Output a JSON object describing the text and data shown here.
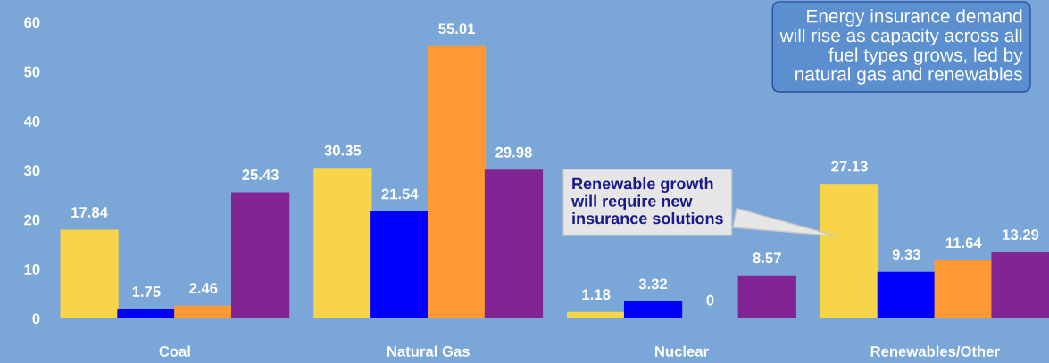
{
  "chart_data": {
    "type": "bar",
    "categories": [
      "Coal",
      "Natural Gas",
      "Nuclear",
      "Renewables/Other"
    ],
    "series": [
      {
        "color": "#f8d548",
        "values": [
          17.84,
          30.35,
          1.18,
          27.13
        ]
      },
      {
        "color": "#0000ff",
        "values": [
          1.75,
          21.54,
          3.32,
          9.33
        ]
      },
      {
        "color": "#ff9933",
        "values": [
          2.46,
          55.01,
          0,
          11.64
        ]
      },
      {
        "color": "#822493",
        "values": [
          25.43,
          29.98,
          8.57,
          13.29
        ]
      }
    ],
    "ylim": [
      0,
      64.5
    ],
    "yticks": [
      0,
      10,
      20,
      30,
      40,
      50,
      60
    ],
    "data_labels": true,
    "grid": false,
    "legend": false,
    "annotations": [
      "Renewable growth\nwill require new\ninsurance solutions",
      "Energy insurance demand\nwill rise as capacity across all\nfuel types grows, led by\nnatural gas and renewables"
    ]
  }
}
